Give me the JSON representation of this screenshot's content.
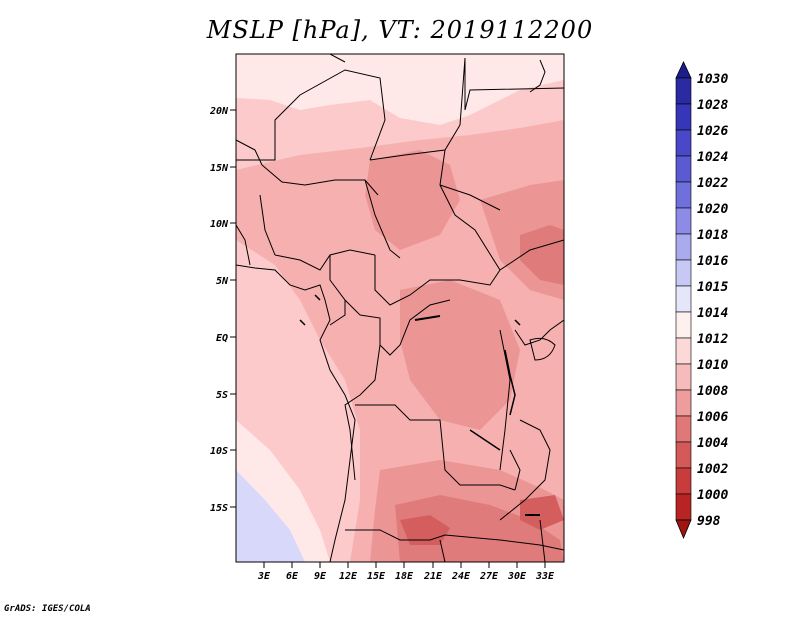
{
  "title": "MSLP [hPa], VT: 2019112200",
  "credit": "GrADS: IGES/COLA",
  "lat_labels": [
    "20N",
    "15N",
    "10N",
    "5N",
    "EQ",
    "5S",
    "10S",
    "15S"
  ],
  "lon_labels": [
    "3E",
    "6E",
    "9E",
    "12E",
    "15E",
    "18E",
    "21E",
    "24E",
    "27E",
    "30E",
    "33E"
  ],
  "colorbar": {
    "levels": [
      "1030",
      "1028",
      "1026",
      "1024",
      "1022",
      "1020",
      "1018",
      "1016",
      "1015",
      "1014",
      "1012",
      "1010",
      "1008",
      "1006",
      "1004",
      "1002",
      "1000",
      "998"
    ],
    "colors": [
      "#1c1c8c",
      "#2a2aa3",
      "#3636b8",
      "#4848c8",
      "#5a5ad2",
      "#7070dc",
      "#8c8ce6",
      "#aaaaee",
      "#c8c8f5",
      "#e6e6fb",
      "#fff0f0",
      "#fcd8d8",
      "#f6bcbc",
      "#ee9c9c",
      "#e07878",
      "#d45a5a",
      "#c83c3c",
      "#b82424",
      "#a01414"
    ]
  },
  "field_colors": {
    "p1016": "#d8d8fa",
    "p1014": "#ffe8e8",
    "p1012": "#fccaca",
    "p1010": "#f6b0b0",
    "p1008": "#ec9595",
    "p1006": "#e07b7b",
    "p1004": "#d45e5e",
    "border": "#000000"
  }
}
